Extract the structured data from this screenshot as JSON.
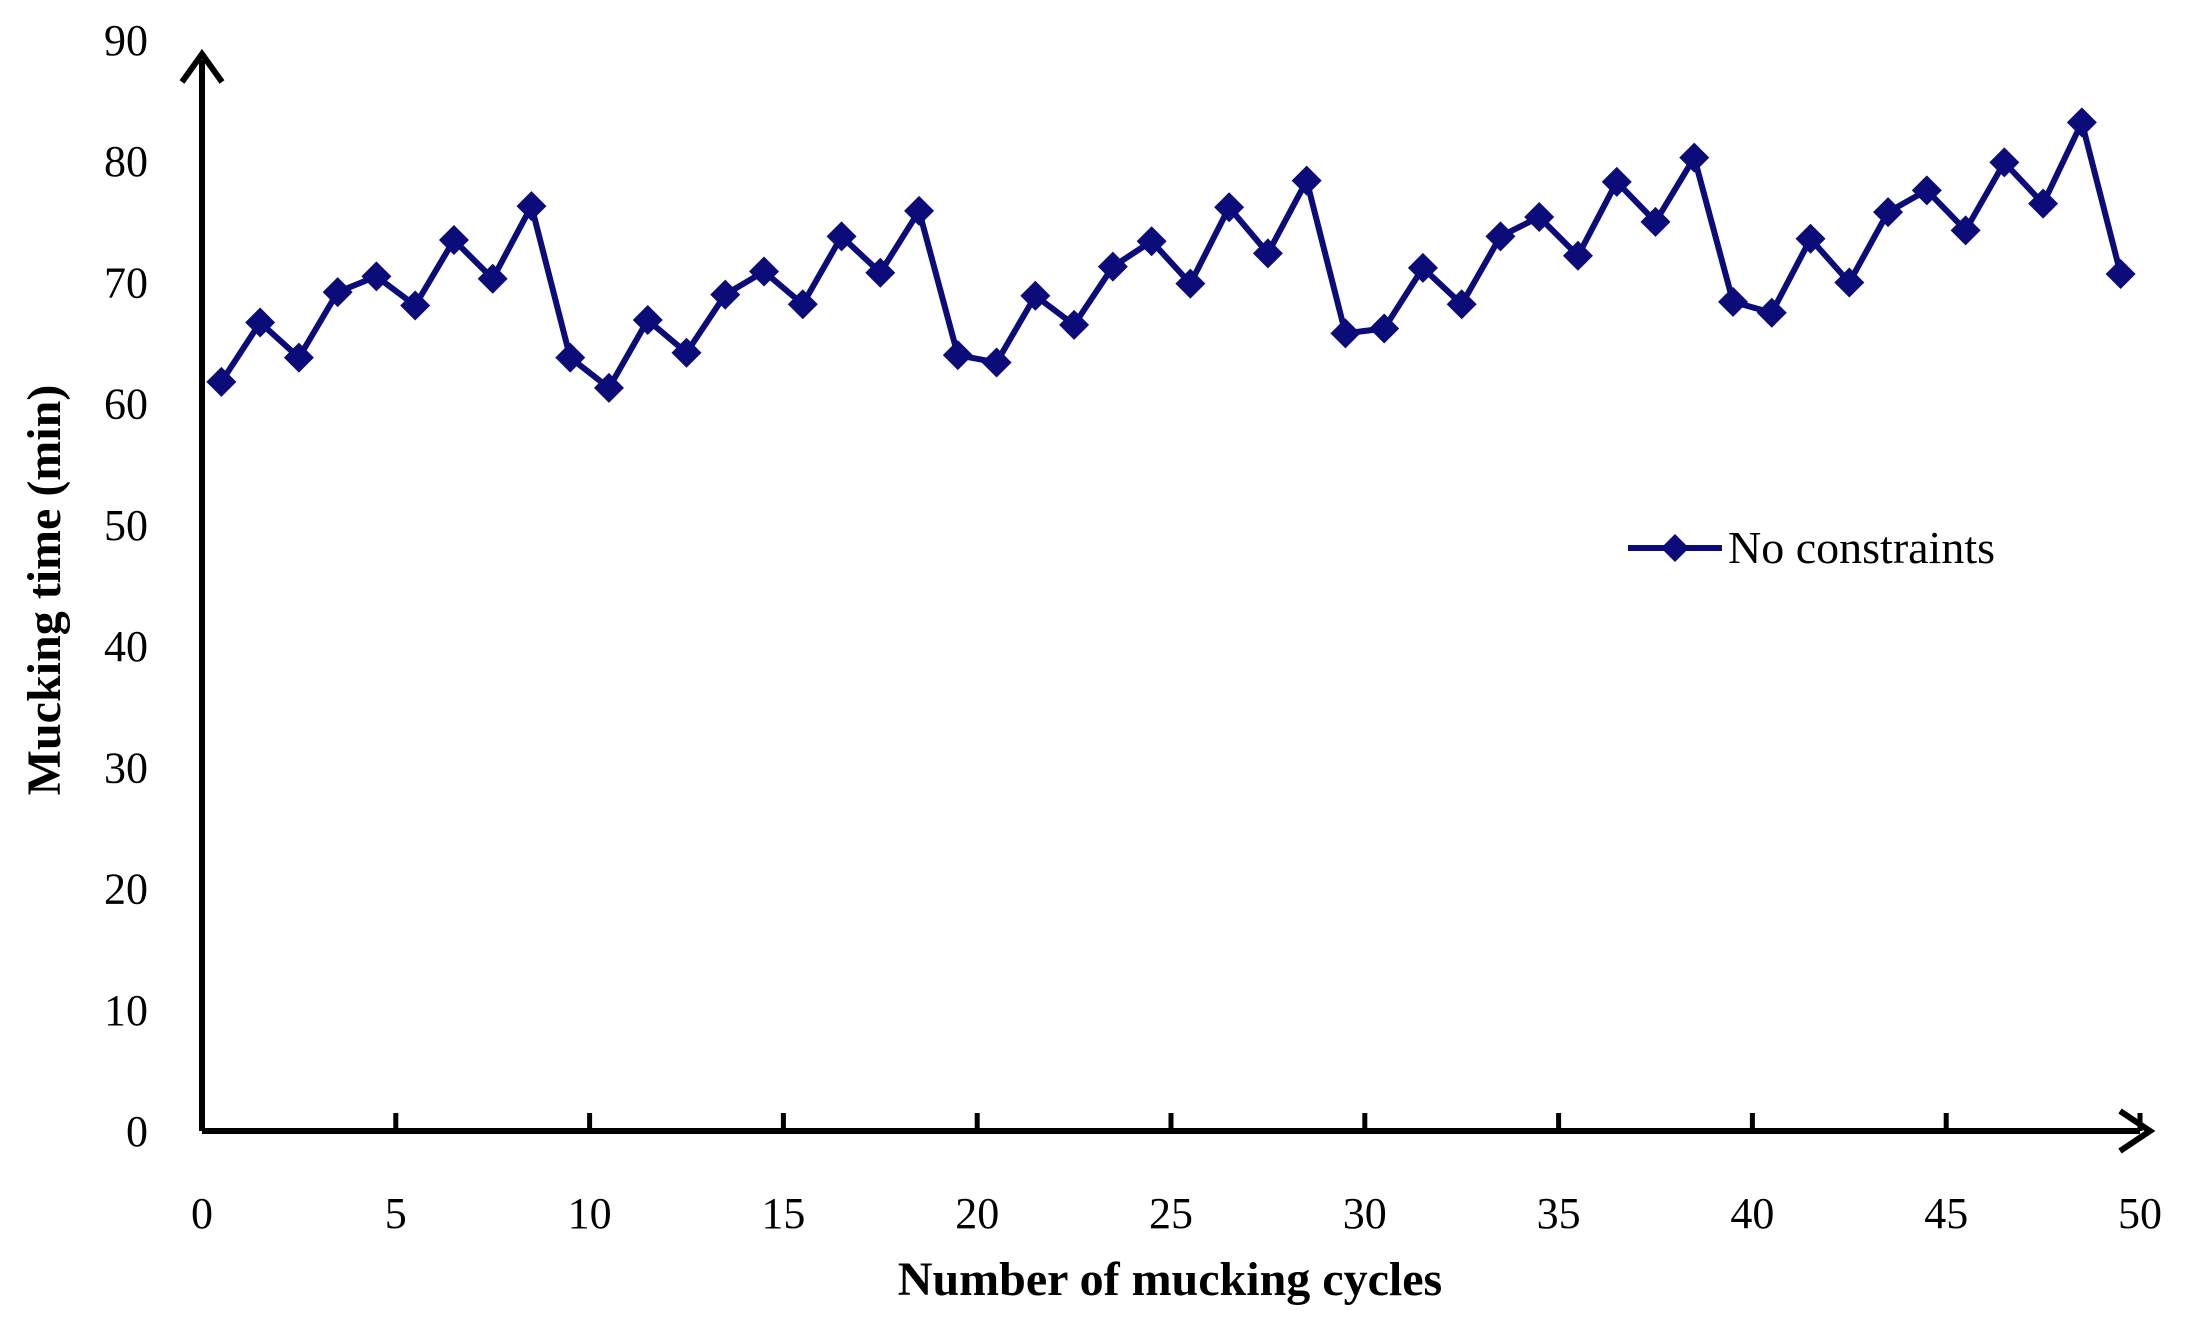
{
  "chart_data": {
    "type": "line",
    "xlabel": "Number of mucking cycles",
    "ylabel": "Mucking time (min)",
    "xlim": [
      0,
      50
    ],
    "ylim": [
      0,
      90
    ],
    "x_ticks": [
      0,
      5,
      10,
      15,
      20,
      25,
      30,
      35,
      40,
      45,
      50
    ],
    "y_ticks": [
      0,
      10,
      20,
      30,
      40,
      50,
      60,
      70,
      80,
      90
    ],
    "grid": false,
    "legend_position": "right-middle",
    "series": [
      {
        "name": "No constraints",
        "color": "#0b0b7a",
        "marker": "diamond",
        "x": [
          1,
          2,
          3,
          4,
          5,
          6,
          7,
          8,
          9,
          10,
          11,
          12,
          13,
          14,
          15,
          16,
          17,
          18,
          19,
          20,
          21,
          22,
          23,
          24,
          25,
          26,
          27,
          28,
          29,
          30,
          31,
          32,
          33,
          34,
          35,
          36,
          37,
          38,
          39,
          40,
          41,
          42,
          43,
          44,
          45,
          46,
          47,
          48,
          49,
          50
        ],
        "values": [
          61.8,
          66.7,
          63.8,
          69.2,
          70.5,
          68.1,
          73.5,
          70.3,
          76.3,
          63.8,
          61.3,
          66.9,
          64.2,
          69.0,
          70.9,
          68.2,
          73.8,
          70.8,
          75.9,
          64.0,
          63.4,
          68.9,
          66.5,
          71.3,
          73.4,
          69.9,
          76.2,
          72.4,
          78.4,
          65.8,
          66.2,
          71.2,
          68.2,
          73.8,
          75.4,
          72.2,
          78.3,
          75.0,
          80.3,
          68.4,
          67.5,
          73.6,
          70.0,
          75.8,
          77.6,
          74.3,
          79.9,
          76.5,
          83.2,
          70.7
        ]
      }
    ]
  }
}
